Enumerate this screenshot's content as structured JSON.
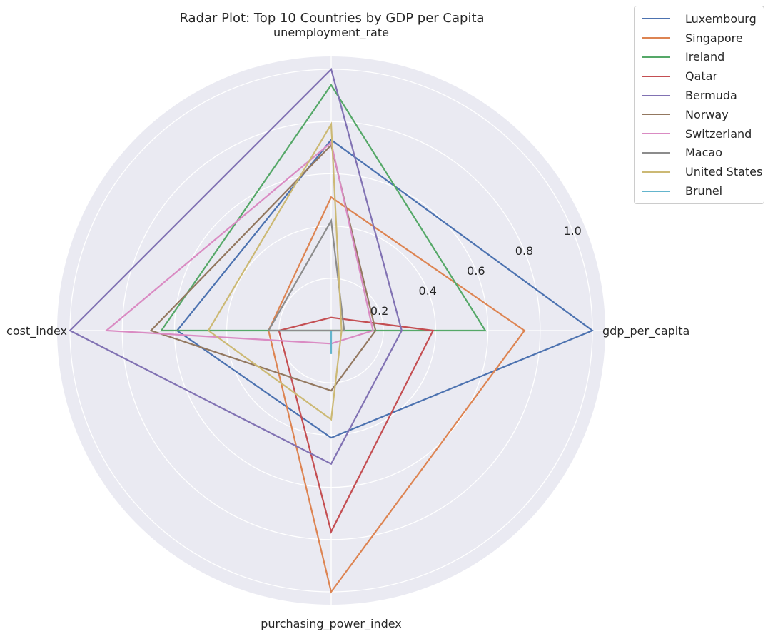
{
  "chart_data": {
    "type": "radar",
    "title": "Radar Plot: Top 10 Countries by GDP per Capita",
    "axes": [
      "gdp_per_capita",
      "unemployment_rate",
      "cost_index",
      "purchasing_power_index"
    ],
    "radial_ticks": [
      "0.2",
      "0.4",
      "0.6",
      "0.8",
      "1.0"
    ],
    "radial_tick_values": [
      0.2,
      0.4,
      0.6,
      0.8,
      1.0
    ],
    "rlim": [
      0,
      1.0
    ],
    "grid": true,
    "legend_position": "top-right",
    "series": [
      {
        "name": "Luxembourg",
        "color": "#4c72b0",
        "values": [
          1.0,
          0.73,
          0.59,
          0.41
        ]
      },
      {
        "name": "Singapore",
        "color": "#dd8452",
        "values": [
          0.74,
          0.51,
          0.24,
          1.0
        ]
      },
      {
        "name": "Ireland",
        "color": "#55a868",
        "values": [
          0.59,
          0.94,
          0.65,
          0.0
        ]
      },
      {
        "name": "Qatar",
        "color": "#c44e52",
        "values": [
          0.39,
          0.05,
          0.2,
          0.77
        ]
      },
      {
        "name": "Bermuda",
        "color": "#8172b3",
        "values": [
          0.27,
          1.0,
          1.0,
          0.51
        ]
      },
      {
        "name": "Norway",
        "color": "#937860",
        "values": [
          0.17,
          0.71,
          0.69,
          0.23
        ]
      },
      {
        "name": "Switzerland",
        "color": "#da8bc3",
        "values": [
          0.16,
          0.72,
          0.86,
          0.05
        ]
      },
      {
        "name": "Macao",
        "color": "#8c8c8c",
        "values": [
          0.05,
          0.42,
          0.24,
          0.0
        ]
      },
      {
        "name": "United States",
        "color": "#ccb974",
        "values": [
          0.04,
          0.79,
          0.47,
          0.34
        ]
      },
      {
        "name": "Brunei",
        "color": "#64b5cd",
        "values": [
          0.0,
          0.0,
          0.0,
          0.09
        ]
      }
    ]
  }
}
